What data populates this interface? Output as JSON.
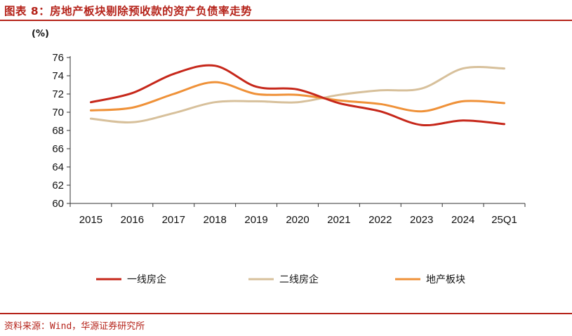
{
  "header": {
    "title": "图表 8：房地产板块剔除预收款的资产负债率走势"
  },
  "footer": {
    "source": "资料来源：Wind，华源证券研究所"
  },
  "colors": {
    "accent": "#b5231a",
    "axis": "#333333"
  },
  "chart_data": {
    "type": "line",
    "title": "房地产板块剔除预收款的资产负债率走势",
    "ylabel": "(%)",
    "xlabel": "",
    "ylim": [
      60,
      76
    ],
    "yticks": [
      60,
      62,
      64,
      66,
      68,
      70,
      72,
      74,
      76
    ],
    "categories": [
      "2015",
      "2016",
      "2017",
      "2018",
      "2019",
      "2020",
      "2021",
      "2022",
      "2023",
      "2024",
      "25Q1"
    ],
    "legend_position": "bottom",
    "series": [
      {
        "name": "一线房企",
        "color": "#c6271a",
        "values": [
          71.1,
          72.1,
          74.2,
          75.1,
          72.8,
          72.5,
          71.0,
          70.1,
          68.6,
          69.1,
          68.7
        ]
      },
      {
        "name": "二线房企",
        "color": "#d7c09b",
        "values": [
          69.3,
          68.9,
          69.9,
          71.1,
          71.2,
          71.1,
          71.9,
          72.4,
          72.6,
          74.8,
          74.8
        ]
      },
      {
        "name": "地产板块",
        "color": "#ef9138",
        "values": [
          70.2,
          70.5,
          72.0,
          73.3,
          72.0,
          71.9,
          71.3,
          70.9,
          70.1,
          71.2,
          71.0
        ]
      }
    ]
  }
}
